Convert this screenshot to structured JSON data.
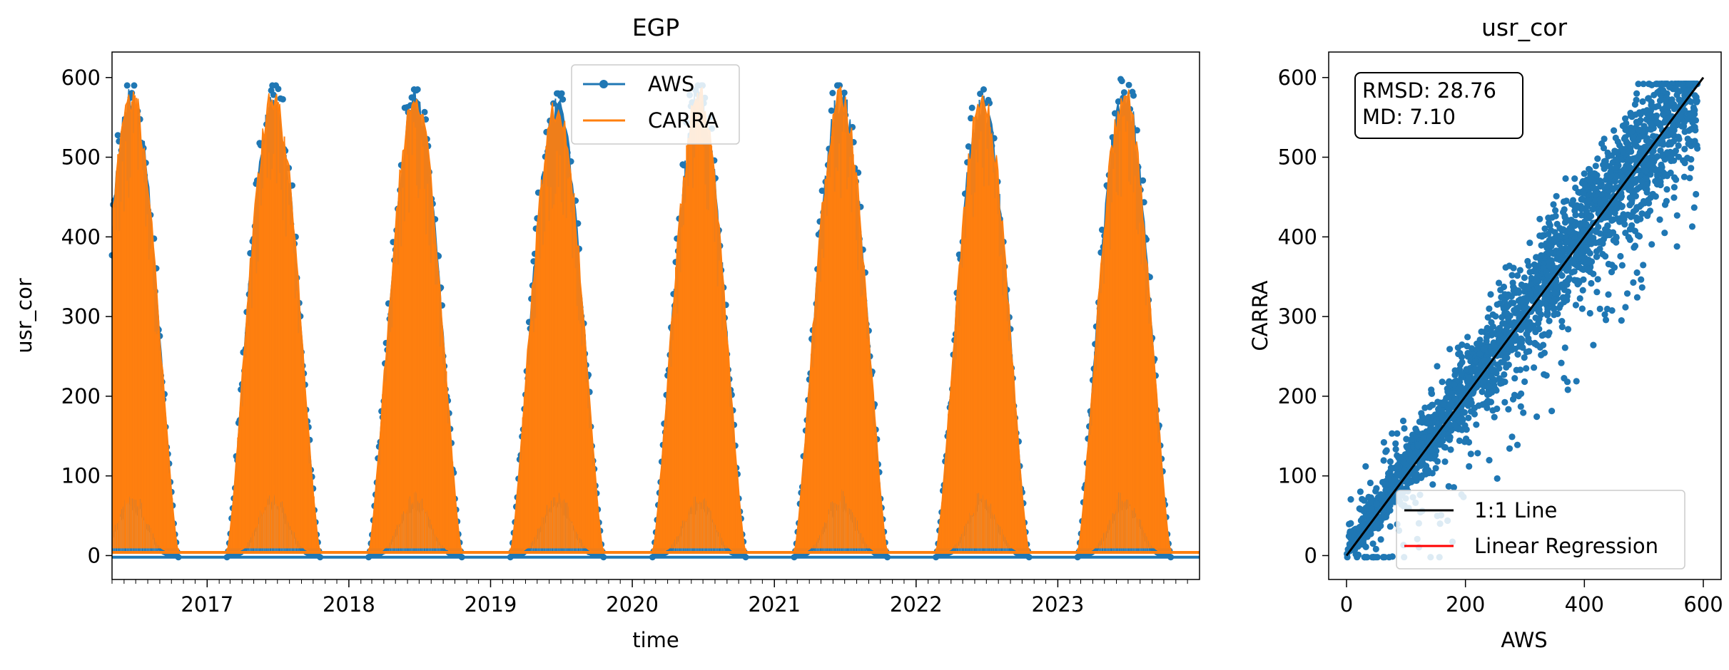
{
  "chart_data": [
    {
      "type": "line",
      "title": "EGP",
      "xlabel": "time",
      "ylabel": "usr_cor",
      "x_tick_labels": [
        "2017",
        "2018",
        "2019",
        "2020",
        "2021",
        "2022",
        "2023"
      ],
      "y_ticks": [
        0,
        100,
        200,
        300,
        400,
        500,
        600
      ],
      "xlim": [
        "2016-05-01",
        "2024-01-01"
      ],
      "ylim": [
        -30,
        632
      ],
      "legend_position": "top-center",
      "series": [
        {
          "name": "AWS",
          "color": "#1f77b4",
          "marker": "circle",
          "seasonal_peaks": [
            {
              "date": "2016-06-21",
              "value": 590
            },
            {
              "date": "2017-06-21",
              "value": 590
            },
            {
              "date": "2018-06-21",
              "value": 585
            },
            {
              "date": "2019-06-21",
              "value": 580
            },
            {
              "date": "2020-06-21",
              "value": 590
            },
            {
              "date": "2021-06-21",
              "value": 590
            },
            {
              "date": "2022-06-21",
              "value": 585
            },
            {
              "date": "2023-06-21",
              "value": 598
            }
          ],
          "winter_baseline": -2
        },
        {
          "name": "CARRA",
          "color": "#ff7f0e",
          "seasonal_peaks": [
            {
              "date": "2016-06-21",
              "value": 592
            },
            {
              "date": "2017-06-21",
              "value": 595
            },
            {
              "date": "2018-06-21",
              "value": 588
            },
            {
              "date": "2019-06-21",
              "value": 582
            },
            {
              "date": "2020-06-21",
              "value": 592
            },
            {
              "date": "2021-06-21",
              "value": 593
            },
            {
              "date": "2022-06-21",
              "value": 590
            },
            {
              "date": "2023-06-21",
              "value": 595
            }
          ],
          "winter_baseline": 4
        }
      ]
    },
    {
      "type": "scatter",
      "title": "usr_cor",
      "xlabel": "AWS",
      "ylabel": "CARRA",
      "x_ticks": [
        0,
        200,
        400,
        600
      ],
      "y_ticks": [
        0,
        100,
        200,
        300,
        400,
        500,
        600
      ],
      "xlim": [
        -30,
        630
      ],
      "ylim": [
        -30,
        632
      ],
      "stats_box": [
        "RMSD: 28.76",
        "MD: 7.10"
      ],
      "legend_position": "lower-right",
      "points_color": "#1f77b4",
      "one_to_one": {
        "label": "1:1 Line",
        "color": "#000000",
        "from": [
          0,
          0
        ],
        "to": [
          600,
          600
        ]
      },
      "regression": {
        "label": "Linear Regression",
        "color": "#ff0000"
      }
    }
  ]
}
